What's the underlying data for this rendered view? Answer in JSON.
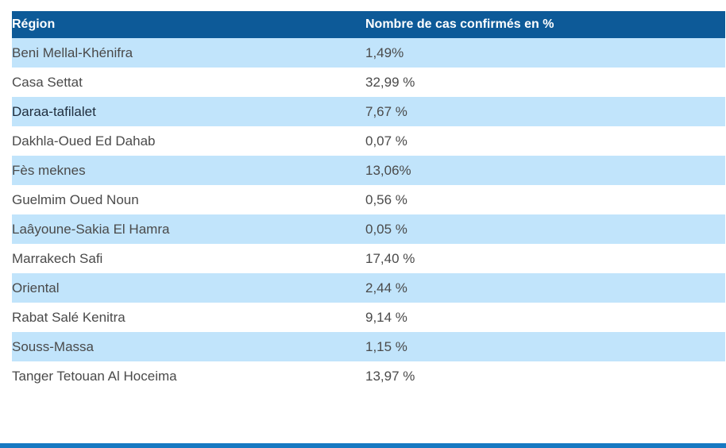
{
  "table": {
    "headers": {
      "region": "Région",
      "percent": "Nombre de cas confirmés en %"
    },
    "rows": [
      {
        "region": "Beni Mellal-Khénifra",
        "percent": "1,49%"
      },
      {
        "region": "Casa Settat",
        "percent": "32,99 %"
      },
      {
        "region": "Daraa-tafilalet",
        "percent": "7,67 %"
      },
      {
        "region": "Dakhla-Oued Ed Dahab",
        "percent": "0,07 %"
      },
      {
        "region": "Fès meknes",
        "percent": "13,06%"
      },
      {
        "region": "Guelmim Oued Noun",
        "percent": "0,56 %"
      },
      {
        "region": "Laâyoune-Sakia El Hamra",
        "percent": "0,05 %"
      },
      {
        "region": "Marrakech Safi",
        "percent": "17,40 %"
      },
      {
        "region": "Oriental",
        "percent": "2,44 %"
      },
      {
        "region": "Rabat Salé Kenitra",
        "percent": "9,14 %"
      },
      {
        "region": "Souss-Massa",
        "percent": "1,15 %"
      },
      {
        "region": "Tanger Tetouan Al Hoceima",
        "percent": "13,97 %"
      }
    ]
  },
  "colors": {
    "header_bg": "#0d5a98",
    "row_striped_bg": "#c1e4fb",
    "bottom_bar": "#1779c2"
  }
}
